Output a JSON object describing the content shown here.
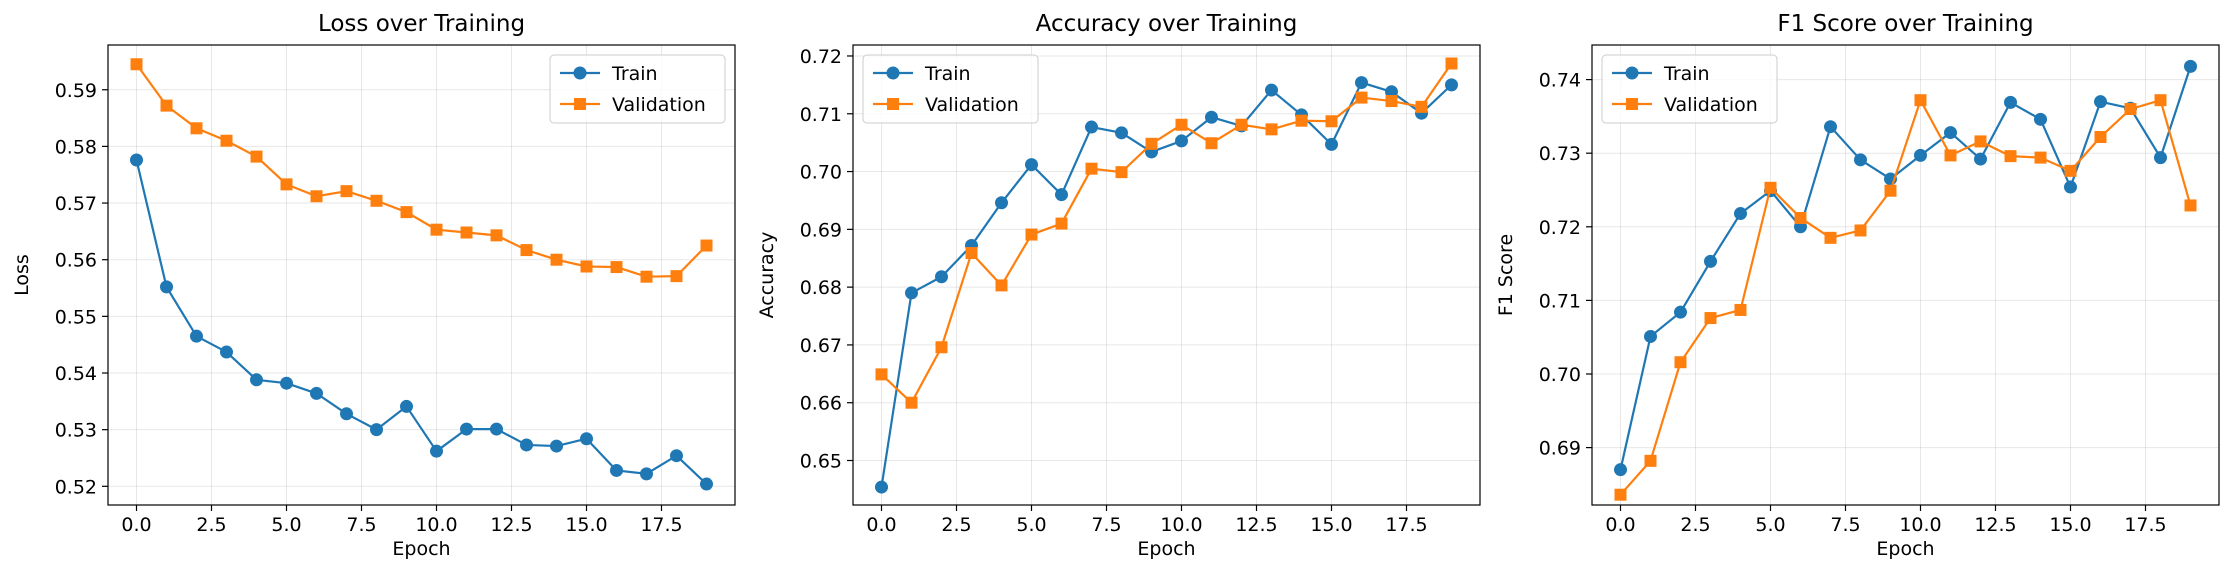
{
  "colors": {
    "train": "#1f77b4",
    "validation": "#ff7f0e"
  },
  "chart_data": [
    {
      "type": "line",
      "title": "Loss over Training",
      "xlabel": "Epoch",
      "ylabel": "Loss",
      "xlim": [
        -0.95,
        19.95
      ],
      "ylim": [
        0.5167,
        0.5979
      ],
      "xticks": [
        0,
        2.5,
        5,
        7.5,
        10,
        12.5,
        15,
        17.5
      ],
      "xtick_labels": [
        "0.0",
        "2.5",
        "5.0",
        "7.5",
        "10.0",
        "12.5",
        "15.0",
        "17.5"
      ],
      "yticks": [
        0.52,
        0.53,
        0.54,
        0.55,
        0.56,
        0.57,
        0.58,
        0.59
      ],
      "ytick_labels": [
        "0.52",
        "0.53",
        "0.54",
        "0.55",
        "0.56",
        "0.57",
        "0.58",
        "0.59"
      ],
      "grid": true,
      "legend": "top-right",
      "x": [
        0,
        1,
        2,
        3,
        4,
        5,
        6,
        7,
        8,
        9,
        10,
        11,
        12,
        13,
        14,
        15,
        16,
        17,
        18,
        19
      ],
      "series": [
        {
          "name": "Train",
          "marker": "circle",
          "values": [
            0.5776,
            0.5552,
            0.5465,
            0.5437,
            0.5388,
            0.5382,
            0.5364,
            0.5328,
            0.53,
            0.5341,
            0.5262,
            0.5301,
            0.5301,
            0.5273,
            0.5271,
            0.5284,
            0.5228,
            0.5222,
            0.5254,
            0.5204
          ]
        },
        {
          "name": "Validation",
          "marker": "square",
          "values": [
            0.5945,
            0.5872,
            0.5832,
            0.581,
            0.5782,
            0.5733,
            0.5712,
            0.5721,
            0.5704,
            0.5684,
            0.5653,
            0.5648,
            0.5643,
            0.5617,
            0.56,
            0.5588,
            0.5587,
            0.557,
            0.5571,
            0.5625
          ]
        }
      ]
    },
    {
      "type": "line",
      "title": "Accuracy over Training",
      "xlabel": "Epoch",
      "ylabel": "Accuracy",
      "xlim": [
        -0.95,
        19.95
      ],
      "ylim": [
        0.6423,
        0.7219
      ],
      "xticks": [
        0,
        2.5,
        5,
        7.5,
        10,
        12.5,
        15,
        17.5
      ],
      "xtick_labels": [
        "0.0",
        "2.5",
        "5.0",
        "7.5",
        "10.0",
        "12.5",
        "15.0",
        "17.5"
      ],
      "yticks": [
        0.65,
        0.66,
        0.67,
        0.68,
        0.69,
        0.7,
        0.71,
        0.72
      ],
      "ytick_labels": [
        "0.65",
        "0.66",
        "0.67",
        "0.68",
        "0.69",
        "0.70",
        "0.71",
        "0.72"
      ],
      "grid": true,
      "legend": "top-left",
      "x": [
        0,
        1,
        2,
        3,
        4,
        5,
        6,
        7,
        8,
        9,
        10,
        11,
        12,
        13,
        14,
        15,
        16,
        17,
        18,
        19
      ],
      "series": [
        {
          "name": "Train",
          "marker": "circle",
          "values": [
            0.6454,
            0.679,
            0.6818,
            0.6872,
            0.6946,
            0.7012,
            0.696,
            0.7077,
            0.7067,
            0.7034,
            0.7053,
            0.7094,
            0.7079,
            0.7141,
            0.7098,
            0.7047,
            0.7154,
            0.7138,
            0.7101,
            0.715
          ]
        },
        {
          "name": "Validation",
          "marker": "square",
          "values": [
            0.6649,
            0.66,
            0.6696,
            0.6859,
            0.6803,
            0.6891,
            0.691,
            0.7005,
            0.6999,
            0.7048,
            0.7081,
            0.7049,
            0.7081,
            0.7073,
            0.7088,
            0.7087,
            0.7128,
            0.7122,
            0.7112,
            0.7187
          ]
        }
      ]
    },
    {
      "type": "line",
      "title": "F1 Score over Training",
      "xlabel": "Epoch",
      "ylabel": "F1 Score",
      "xlim": [
        -0.95,
        19.95
      ],
      "ylim": [
        0.6822,
        0.7447
      ],
      "xticks": [
        0,
        2.5,
        5,
        7.5,
        10,
        12.5,
        15,
        17.5
      ],
      "xtick_labels": [
        "0.0",
        "2.5",
        "5.0",
        "7.5",
        "10.0",
        "12.5",
        "15.0",
        "17.5"
      ],
      "yticks": [
        0.69,
        0.7,
        0.71,
        0.72,
        0.73,
        0.74
      ],
      "ytick_labels": [
        "0.69",
        "0.70",
        "0.71",
        "0.72",
        "0.73",
        "0.74"
      ],
      "grid": true,
      "legend": "top-left",
      "x": [
        0,
        1,
        2,
        3,
        4,
        5,
        6,
        7,
        8,
        9,
        10,
        11,
        12,
        13,
        14,
        15,
        16,
        17,
        18,
        19
      ],
      "series": [
        {
          "name": "Train",
          "marker": "circle",
          "values": [
            0.687,
            0.7051,
            0.7084,
            0.7153,
            0.7218,
            0.7249,
            0.72,
            0.7336,
            0.7291,
            0.7265,
            0.7297,
            0.7328,
            0.7292,
            0.7369,
            0.7346,
            0.7254,
            0.737,
            0.7361,
            0.7294,
            0.7418
          ]
        },
        {
          "name": "Validation",
          "marker": "square",
          "values": [
            0.6836,
            0.6882,
            0.7016,
            0.7076,
            0.7087,
            0.7253,
            0.7212,
            0.7185,
            0.7195,
            0.7249,
            0.7372,
            0.7297,
            0.7316,
            0.7296,
            0.7294,
            0.7276,
            0.7322,
            0.736,
            0.7372,
            0.7229
          ]
        }
      ]
    }
  ]
}
